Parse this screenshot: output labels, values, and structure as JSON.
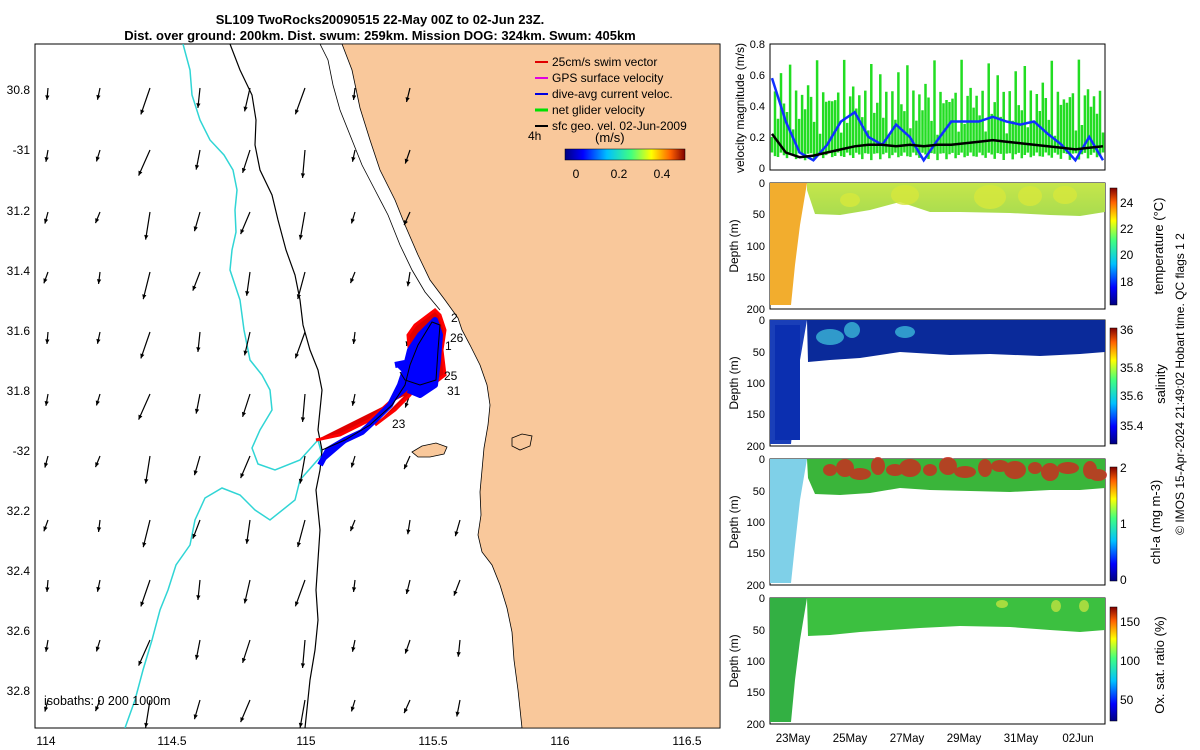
{
  "title": {
    "line1": "SL109 TwoRocks20090515 22-May 00Z to 02-Jun 23Z.",
    "line2": "Dist. over ground: 200km. Dist. swum: 259km. Mission DOG: 324km. Swum: 405km"
  },
  "map": {
    "lat_ticks": [
      "30.8",
      "-31",
      "31.2",
      "31.4",
      "31.6",
      "31.8",
      "-32",
      "32.2",
      "32.4",
      "32.6",
      "32.8"
    ],
    "lon_ticks": [
      "114",
      "114.5",
      "115",
      "115.5",
      "116",
      "116.5"
    ],
    "legend": [
      {
        "label": "25cm/s swim vector",
        "color": "#e00000"
      },
      {
        "label": "GPS surface velocity",
        "color": "#e000e0"
      },
      {
        "label": "dive-avg current veloc.",
        "color": "#0000e0"
      },
      {
        "label": "net glider velocity",
        "color": "#00e000"
      },
      {
        "label": "sfc geo. vel. 02-Jun-2009",
        "color": "#000000"
      }
    ],
    "legend_prefix": "4h",
    "colorbar": {
      "unit": "(m/s)",
      "ticks": [
        "0",
        "0.2",
        "0.4"
      ]
    },
    "isobaths_label": "isobaths: 0   200  1000m",
    "track_labels": [
      "2",
      "26",
      "1",
      "25",
      "31",
      "23"
    ],
    "colors": {
      "land": "#f9c89b",
      "track": "#0000ff",
      "swim": "#ff0000",
      "isobath_200": "#000000",
      "isobath_1000": "#30d5d5"
    }
  },
  "panels": {
    "velocity": {
      "ylabel": "velocity magnitude (m/s)",
      "yticks": [
        "0",
        "0.2",
        "0.4",
        "0.6",
        "0.8"
      ]
    },
    "temperature": {
      "ylabel": "Depth (m)",
      "yticks": [
        "0",
        "50",
        "100",
        "150",
        "200"
      ],
      "cbar_label": "temperature (°C)",
      "cbar_ticks": [
        "24",
        "22",
        "20",
        "18"
      ]
    },
    "salinity": {
      "ylabel": "Depth (m)",
      "yticks": [
        "0",
        "50",
        "100",
        "150",
        "200"
      ],
      "cbar_label": "salinity",
      "cbar_ticks": [
        "36",
        "35.8",
        "35.6",
        "35.4"
      ]
    },
    "chla": {
      "ylabel": "Depth (m)",
      "yticks": [
        "0",
        "50",
        "100",
        "150",
        "200"
      ],
      "cbar_label": "chl-a (mg m-3)",
      "cbar_ticks": [
        "2",
        "1",
        "0"
      ]
    },
    "oxygen": {
      "ylabel": "Depth (m)",
      "yticks": [
        "0",
        "50",
        "100",
        "150",
        "200"
      ],
      "cbar_label": "Ox. sat. ratio (%)",
      "cbar_ticks": [
        "150",
        "100",
        "50"
      ]
    },
    "xticks": [
      "23May",
      "25May",
      "27May",
      "29May",
      "31May",
      "02Jun"
    ]
  },
  "credit": "© IMOS 15-Apr-2024 21:49:02 Hobart time. QC flags 1  2"
}
